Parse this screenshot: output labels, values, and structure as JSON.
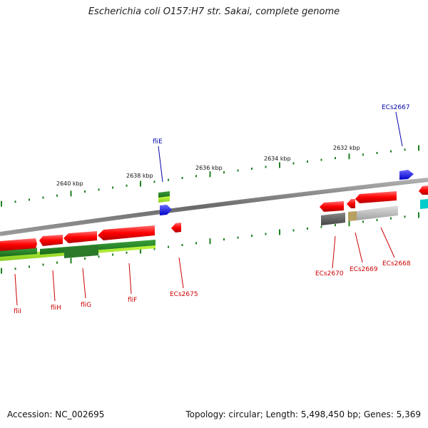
{
  "title": "Escherichia coli O157:H7 str. Sakai, complete genome",
  "footer": {
    "accession": "Accession: NC_002695",
    "summary": "Topology: circular; Length: 5,498,450 bp; Genes: 5,369"
  },
  "colors": {
    "backbone": "#7f7f7f",
    "gene_red": "#ff0000",
    "gene_blue": "#0000ff",
    "gene_green_dark": "#2e8b2e",
    "gene_green_light": "#9acd32",
    "gene_grey": "#bdbdbd",
    "gene_darkgrey": "#5a5a5a",
    "gene_tan": "#b8a060",
    "gene_cyan": "#00cccc",
    "tick": "#1f7f1f",
    "label_red": "#cc0000",
    "label_blue": "#0000aa"
  },
  "scale_labels": [
    "2640 kbp",
    "2638 kbp",
    "2636 kbp",
    "2634 kbp",
    "2632 kbp"
  ],
  "gene_labels": [
    {
      "name": "fliI",
      "color": "red"
    },
    {
      "name": "fliH",
      "color": "red"
    },
    {
      "name": "fliG",
      "color": "red"
    },
    {
      "name": "fliF",
      "color": "red"
    },
    {
      "name": "ECs2675",
      "color": "red"
    },
    {
      "name": "fliE",
      "color": "blue"
    },
    {
      "name": "ECs2670",
      "color": "red"
    },
    {
      "name": "ECs2669",
      "color": "red"
    },
    {
      "name": "ECs2668",
      "color": "red"
    },
    {
      "name": "ECs2667",
      "color": "blue"
    }
  ]
}
